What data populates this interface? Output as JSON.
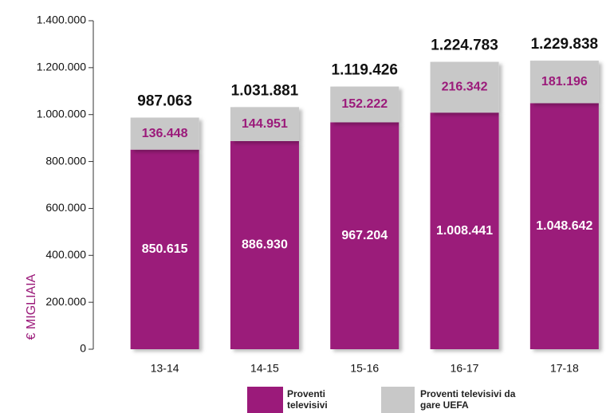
{
  "chart_data": {
    "type": "stacked_bar",
    "y_axis_label": "€ MIGLIAIA",
    "categories": [
      "13-14",
      "14-15",
      "15-16",
      "16-17",
      "17-18"
    ],
    "series": [
      {
        "name": "Proventi televisivi",
        "color": "#9b1a7a",
        "label_color": "#ffffff",
        "values": [
          850615,
          886930,
          967204,
          1008441,
          1048642
        ],
        "value_labels": [
          "850.615",
          "886.930",
          "967.204",
          "1.008.441",
          "1.048.642"
        ]
      },
      {
        "name": "Proventi televisivi da gare UEFA",
        "color": "#c8c8c8",
        "label_color": "#9b1a7a",
        "values": [
          136448,
          144951,
          152222,
          216342,
          181196
        ],
        "value_labels": [
          "136.448",
          "144.951",
          "152.222",
          "216.342",
          "181.196"
        ]
      }
    ],
    "totals": {
      "values": [
        987063,
        1031881,
        1119426,
        1224783,
        1229838
      ],
      "value_labels": [
        "987.063",
        "1.031.881",
        "1.119.426",
        "1.224.783",
        "1.229.838"
      ]
    },
    "ylim": [
      0,
      1400000
    ],
    "yticks": [
      0,
      {
        "value": 200000,
        "label": "200.000"
      },
      {
        "value": 400000,
        "label": "400.000"
      },
      {
        "value": 600000,
        "label": "600.000"
      },
      {
        "value": 800000,
        "label": "800.000"
      },
      {
        "value": 1000000,
        "label": "1.000.000"
      },
      {
        "value": 1200000,
        "label": "1.200.000"
      },
      {
        "value": 1400000,
        "label": "1.400.000"
      }
    ]
  }
}
